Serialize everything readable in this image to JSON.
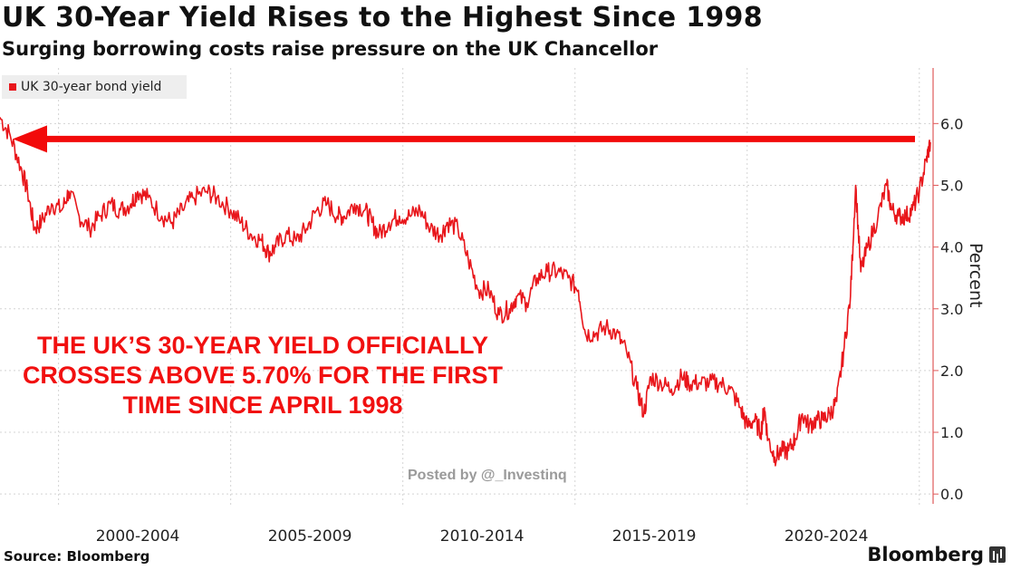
{
  "header": {
    "title": "UK 30-Year Yield Rises to the Highest Since 1998",
    "subtitle": "Surging borrowing costs raise pressure on the UK Chancellor"
  },
  "annotation": {
    "line1": "THE UK’S 30-YEAR YIELD OFFICIALLY",
    "line2": "CROSSES ABOVE 5.70% FOR THE FIRST",
    "line3": "TIME SINCE APRIL 1998"
  },
  "watermark": "Posted by @_Investinq",
  "footer": {
    "source": "Source: Bloomberg",
    "brand": "Bloomberg"
  },
  "colors": {
    "series": "#e8161b",
    "arrow": "#f20a0a",
    "grid": "#d4d4d4",
    "axis": "#e05a5a"
  },
  "chart_data": {
    "type": "line",
    "legend": "top-left",
    "grid": true,
    "xlim": [
      1998.0,
      2025.1
    ],
    "ylim": [
      -0.1,
      6.9
    ],
    "y_ticks": [
      0.0,
      1.0,
      2.0,
      3.0,
      4.0,
      5.0,
      6.0
    ],
    "y_tick_labels": [
      "0.0",
      "1.0",
      "2.0",
      "3.0",
      "4.0",
      "5.0",
      "6.0"
    ],
    "x_tick_labels": [
      {
        "label": "2000-2004",
        "at": 2002.0
      },
      {
        "label": "2005-2009",
        "at": 2007.0
      },
      {
        "label": "2010-2014",
        "at": 2012.0
      },
      {
        "label": "2015-2019",
        "at": 2017.0
      },
      {
        "label": "2020-2024",
        "at": 2022.0
      }
    ],
    "x_gridlines": [
      1999.7,
      2004.7,
      2009.7,
      2014.7,
      2019.7,
      2024.7
    ],
    "ylabel": "Percent",
    "series": [
      {
        "name": "UK 30-year bond yield",
        "points": [
          [
            1998.0,
            6.1
          ],
          [
            1998.3,
            5.8
          ],
          [
            1998.6,
            5.3
          ],
          [
            1998.8,
            4.9
          ],
          [
            1999.0,
            4.3
          ],
          [
            1999.2,
            4.4
          ],
          [
            1999.5,
            4.7
          ],
          [
            1999.8,
            4.6
          ],
          [
            2000.0,
            4.9
          ],
          [
            2000.3,
            4.5
          ],
          [
            2000.6,
            4.3
          ],
          [
            2000.9,
            4.5
          ],
          [
            2001.2,
            4.7
          ],
          [
            2001.5,
            4.6
          ],
          [
            2001.8,
            4.7
          ],
          [
            2002.0,
            4.9
          ],
          [
            2002.3,
            4.8
          ],
          [
            2002.7,
            4.5
          ],
          [
            2003.0,
            4.4
          ],
          [
            2003.3,
            4.6
          ],
          [
            2003.6,
            4.8
          ],
          [
            2004.0,
            4.9
          ],
          [
            2004.3,
            4.8
          ],
          [
            2004.7,
            4.6
          ],
          [
            2005.0,
            4.4
          ],
          [
            2005.3,
            4.2
          ],
          [
            2005.6,
            4.1
          ],
          [
            2005.8,
            3.9
          ],
          [
            2006.0,
            4.0
          ],
          [
            2006.3,
            4.2
          ],
          [
            2006.6,
            4.1
          ],
          [
            2006.9,
            4.3
          ],
          [
            2007.2,
            4.6
          ],
          [
            2007.5,
            4.7
          ],
          [
            2007.8,
            4.5
          ],
          [
            2008.0,
            4.5
          ],
          [
            2008.3,
            4.7
          ],
          [
            2008.6,
            4.6
          ],
          [
            2008.8,
            4.4
          ],
          [
            2009.0,
            4.2
          ],
          [
            2009.3,
            4.4
          ],
          [
            2009.6,
            4.5
          ],
          [
            2009.9,
            4.5
          ],
          [
            2010.2,
            4.6
          ],
          [
            2010.5,
            4.3
          ],
          [
            2010.8,
            4.2
          ],
          [
            2011.0,
            4.4
          ],
          [
            2011.3,
            4.3
          ],
          [
            2011.6,
            3.8
          ],
          [
            2011.9,
            3.3
          ],
          [
            2012.2,
            3.3
          ],
          [
            2012.5,
            2.9
          ],
          [
            2012.8,
            3.0
          ],
          [
            2013.0,
            3.2
          ],
          [
            2013.3,
            3.1
          ],
          [
            2013.6,
            3.5
          ],
          [
            2013.9,
            3.6
          ],
          [
            2014.2,
            3.6
          ],
          [
            2014.5,
            3.5
          ],
          [
            2014.8,
            3.3
          ],
          [
            2015.0,
            2.6
          ],
          [
            2015.3,
            2.6
          ],
          [
            2015.6,
            2.7
          ],
          [
            2015.9,
            2.6
          ],
          [
            2016.2,
            2.3
          ],
          [
            2016.5,
            1.7
          ],
          [
            2016.7,
            1.3
          ],
          [
            2016.9,
            1.9
          ],
          [
            2017.2,
            1.8
          ],
          [
            2017.5,
            1.7
          ],
          [
            2017.8,
            1.9
          ],
          [
            2018.0,
            1.8
          ],
          [
            2018.3,
            1.8
          ],
          [
            2018.6,
            1.8
          ],
          [
            2018.9,
            1.8
          ],
          [
            2019.2,
            1.7
          ],
          [
            2019.5,
            1.4
          ],
          [
            2019.7,
            1.1
          ],
          [
            2019.9,
            1.2
          ],
          [
            2020.1,
            1.0
          ],
          [
            2020.2,
            1.4
          ],
          [
            2020.3,
            0.9
          ],
          [
            2020.5,
            0.6
          ],
          [
            2020.7,
            0.7
          ],
          [
            2020.9,
            0.7
          ],
          [
            2021.1,
            0.9
          ],
          [
            2021.3,
            1.3
          ],
          [
            2021.5,
            1.1
          ],
          [
            2021.7,
            1.2
          ],
          [
            2021.9,
            1.2
          ],
          [
            2022.1,
            1.3
          ],
          [
            2022.3,
            1.5
          ],
          [
            2022.5,
            2.3
          ],
          [
            2022.7,
            3.2
          ],
          [
            2022.85,
            5.0
          ],
          [
            2023.0,
            3.6
          ],
          [
            2023.2,
            4.0
          ],
          [
            2023.5,
            4.5
          ],
          [
            2023.75,
            5.0
          ],
          [
            2023.9,
            4.6
          ],
          [
            2024.1,
            4.5
          ],
          [
            2024.3,
            4.5
          ],
          [
            2024.5,
            4.6
          ],
          [
            2024.7,
            4.9
          ],
          [
            2024.9,
            5.4
          ],
          [
            2025.02,
            5.7
          ]
        ]
      }
    ]
  }
}
